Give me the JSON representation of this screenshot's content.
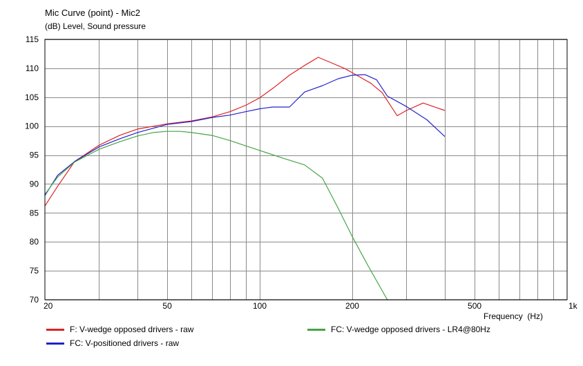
{
  "chart_data": {
    "type": "line",
    "title": "Mic Curve (point) - Mic2",
    "subtitle": "(dB)  Level, Sound pressure",
    "xlabel": "Frequency  (Hz)",
    "ylabel": "",
    "x_scale": "log",
    "xlim": [
      20,
      1000
    ],
    "ylim": [
      70,
      115
    ],
    "x_ticks": [
      20,
      50,
      100,
      200,
      500,
      1000
    ],
    "x_tick_labels": [
      "20",
      "50",
      "100",
      "200",
      "500",
      "1k"
    ],
    "y_ticks": [
      70,
      75,
      80,
      85,
      90,
      95,
      100,
      105,
      110,
      115
    ],
    "y_tick_labels": [
      "70",
      "75",
      "80",
      "85",
      "90",
      "95",
      "100",
      "105",
      "110",
      "115"
    ],
    "grid": true,
    "legend_position": "bottom",
    "series": [
      {
        "name": "F: V-wedge opposed drivers - raw",
        "color": "#dd2222",
        "points": [
          [
            20,
            86.2
          ],
          [
            22,
            89.6
          ],
          [
            25,
            93.9
          ],
          [
            30,
            96.7
          ],
          [
            35,
            98.4
          ],
          [
            40,
            99.5
          ],
          [
            50,
            100.4
          ],
          [
            60,
            100.9
          ],
          [
            70,
            101.6
          ],
          [
            80,
            102.5
          ],
          [
            90,
            103.6
          ],
          [
            100,
            104.9
          ],
          [
            112,
            106.8
          ],
          [
            125,
            108.8
          ],
          [
            140,
            110.5
          ],
          [
            155,
            111.9
          ],
          [
            170,
            111.0
          ],
          [
            190,
            109.9
          ],
          [
            210,
            108.6
          ],
          [
            230,
            107.4
          ],
          [
            250,
            105.8
          ],
          [
            280,
            101.8
          ],
          [
            300,
            102.7
          ],
          [
            340,
            104.0
          ],
          [
            400,
            102.7
          ]
        ]
      },
      {
        "name": "FC: V-positioned drivers -  raw",
        "color": "#2222cc",
        "points": [
          [
            20,
            88.0
          ],
          [
            22,
            91.5
          ],
          [
            25,
            93.9
          ],
          [
            30,
            96.4
          ],
          [
            35,
            97.8
          ],
          [
            40,
            98.9
          ],
          [
            50,
            100.3
          ],
          [
            60,
            100.8
          ],
          [
            70,
            101.5
          ],
          [
            80,
            101.9
          ],
          [
            90,
            102.5
          ],
          [
            100,
            103.0
          ],
          [
            110,
            103.3
          ],
          [
            125,
            103.3
          ],
          [
            140,
            105.9
          ],
          [
            160,
            107.0
          ],
          [
            180,
            108.2
          ],
          [
            200,
            108.8
          ],
          [
            220,
            108.9
          ],
          [
            240,
            108.0
          ],
          [
            260,
            105.2
          ],
          [
            300,
            103.4
          ],
          [
            350,
            101.1
          ],
          [
            400,
            98.2
          ]
        ]
      },
      {
        "name": "FC: V-wedge opposed drivers - LR4@80Hz",
        "color": "#44a444",
        "points": [
          [
            20,
            88.2
          ],
          [
            22,
            91.2
          ],
          [
            25,
            93.8
          ],
          [
            30,
            96.0
          ],
          [
            35,
            97.3
          ],
          [
            40,
            98.3
          ],
          [
            45,
            98.9
          ],
          [
            50,
            99.1
          ],
          [
            55,
            99.1
          ],
          [
            60,
            98.9
          ],
          [
            70,
            98.4
          ],
          [
            80,
            97.5
          ],
          [
            100,
            95.8
          ],
          [
            120,
            94.4
          ],
          [
            140,
            93.3
          ],
          [
            160,
            91.0
          ],
          [
            180,
            85.8
          ],
          [
            200,
            80.9
          ],
          [
            225,
            75.9
          ],
          [
            260,
            70.0
          ]
        ]
      }
    ]
  }
}
